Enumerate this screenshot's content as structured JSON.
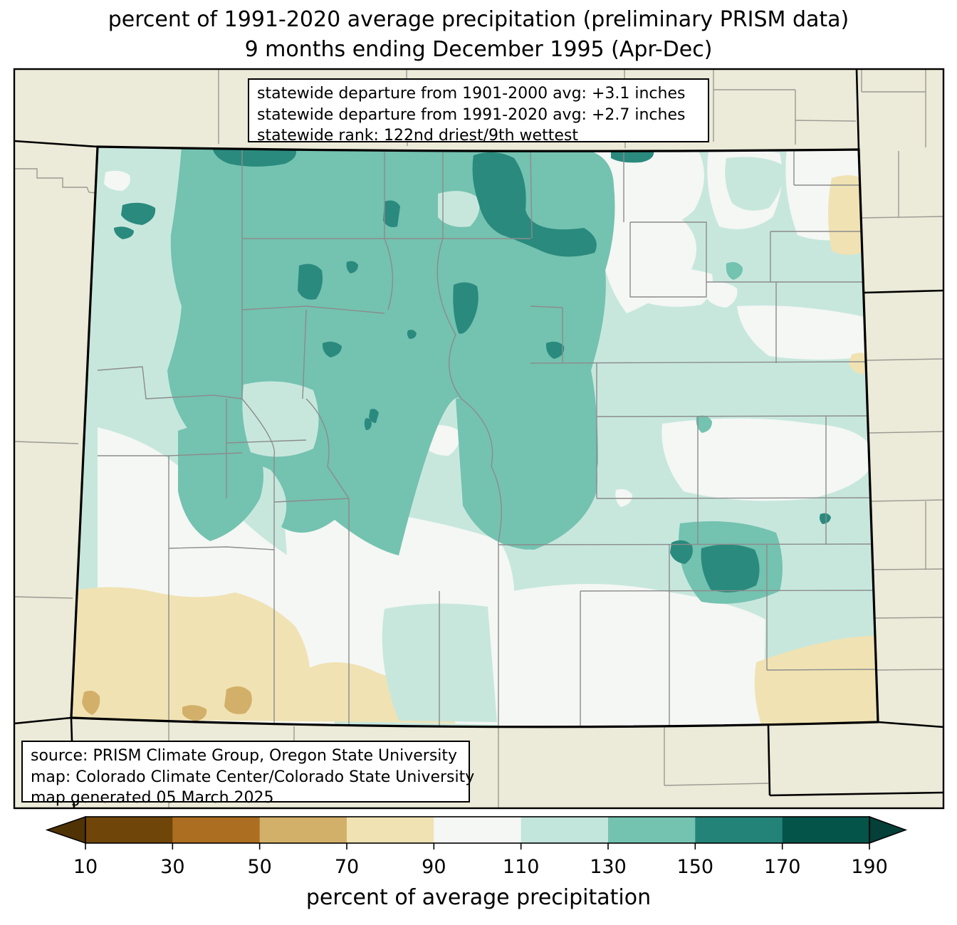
{
  "title": {
    "line1": "percent of 1991-2020 average precipitation (preliminary PRISM data)",
    "line2": "9 months ending December 1995 (Apr-Dec)"
  },
  "stats_box": {
    "line1": "statewide departure from 1901-2000 avg: +3.1 inches",
    "line2": "statewide departure from 1991-2020 avg: +2.7 inches",
    "line3": "statewide rank: 122nd driest/9th wettest"
  },
  "source_box": {
    "line1": "source: PRISM Climate Group, Oregon State University",
    "line2": "map: Colorado Climate Center/Colorado State University",
    "line3": "map generated 05 March 2025"
  },
  "colorbar": {
    "label": "percent of average precipitation",
    "ticks": [
      "10",
      "30",
      "50",
      "70",
      "90",
      "110",
      "130",
      "150",
      "170",
      "190"
    ],
    "segment_colors": [
      "#6f4509",
      "#ac6e21",
      "#d3b069",
      "#f0e2b3",
      "#f4f7f4",
      "#c2e5dc",
      "#74c2b0",
      "#238378",
      "#05544a"
    ],
    "under_color": "#4f3305",
    "over_color": "#043f38"
  },
  "map": {
    "region": "Colorado",
    "palette": {
      "outside": "#ecead8",
      "white_90_110": "#f4f7f4",
      "mint_110_130": "#c7e7dd",
      "teal_130_150": "#74c2b0",
      "dark_teal_150_170": "#2a8a7e",
      "tan_70_90": "#f0e2b3",
      "dark_tan_50_70": "#d3b069",
      "county_line": "#8c8c8c",
      "state_line": "#000000"
    }
  }
}
